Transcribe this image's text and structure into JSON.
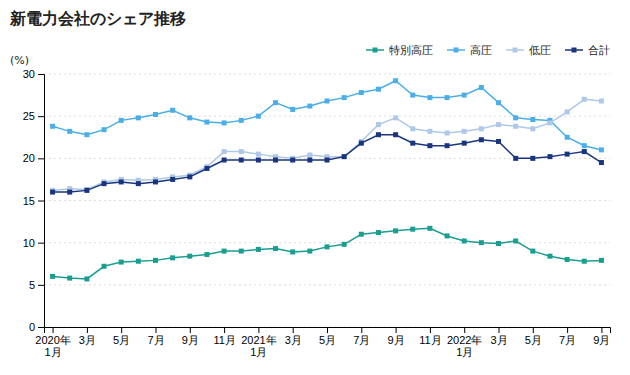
{
  "chart_data": {
    "type": "line",
    "title": "新電力会社のシェア推移",
    "y_label": "(%)",
    "categories": [
      "2020年\n1月",
      null,
      "3月",
      null,
      "5月",
      null,
      "7月",
      null,
      "9月",
      null,
      "11月",
      null,
      "2021年\n1月",
      null,
      "3月",
      null,
      "5月",
      null,
      "7月",
      null,
      "9月",
      null,
      "11月",
      null,
      "2022年\n1月",
      null,
      "3月",
      null,
      "5月",
      null,
      "7月",
      null,
      "9月"
    ],
    "series": [
      {
        "name": "特別高圧",
        "color": "#1a9e8f",
        "marker": "square",
        "values": [
          6.0,
          5.8,
          5.7,
          7.2,
          7.7,
          7.8,
          7.9,
          8.2,
          8.4,
          8.6,
          9.0,
          9.0,
          9.2,
          9.3,
          8.9,
          9.0,
          9.5,
          9.8,
          11.0,
          11.2,
          11.4,
          11.6,
          11.7,
          10.8,
          10.2,
          10.0,
          9.9,
          10.2,
          9.0,
          8.4,
          8.0,
          7.8,
          7.9
        ]
      },
      {
        "name": "高圧",
        "color": "#4baee8",
        "marker": "square",
        "values": [
          23.8,
          23.2,
          22.8,
          23.4,
          24.5,
          24.8,
          25.2,
          25.7,
          24.8,
          24.3,
          24.2,
          24.5,
          25.0,
          26.6,
          25.8,
          26.2,
          26.8,
          27.2,
          27.8,
          28.2,
          29.2,
          27.5,
          27.2,
          27.2,
          27.5,
          28.4,
          26.6,
          24.8,
          24.6,
          24.5,
          22.5,
          21.5,
          21.0
        ]
      },
      {
        "name": "低圧",
        "color": "#afc8e8",
        "marker": "square",
        "values": [
          16.2,
          16.4,
          16.3,
          17.2,
          17.5,
          17.4,
          17.5,
          17.8,
          18.0,
          19.0,
          20.8,
          20.8,
          20.5,
          20.2,
          20.0,
          20.4,
          20.2,
          20.2,
          22.0,
          24.0,
          24.8,
          23.5,
          23.2,
          23.0,
          23.2,
          23.5,
          24.0,
          23.8,
          23.5,
          24.2,
          25.5,
          27.0,
          26.8
        ]
      },
      {
        "name": "合計",
        "color": "#1a3580",
        "marker": "square",
        "values": [
          16.0,
          16.0,
          16.2,
          17.0,
          17.2,
          17.0,
          17.2,
          17.5,
          17.8,
          18.8,
          19.8,
          19.8,
          19.8,
          19.8,
          19.8,
          19.8,
          19.8,
          20.2,
          21.8,
          22.8,
          22.8,
          21.8,
          21.5,
          21.5,
          21.8,
          22.2,
          22.0,
          20.0,
          20.0,
          20.2,
          20.5,
          20.8,
          19.5
        ]
      }
    ],
    "ylim": [
      0,
      30
    ],
    "yticks": [
      0,
      5,
      10,
      15,
      20,
      25,
      30
    ],
    "grid": true,
    "legend": "top-right"
  }
}
